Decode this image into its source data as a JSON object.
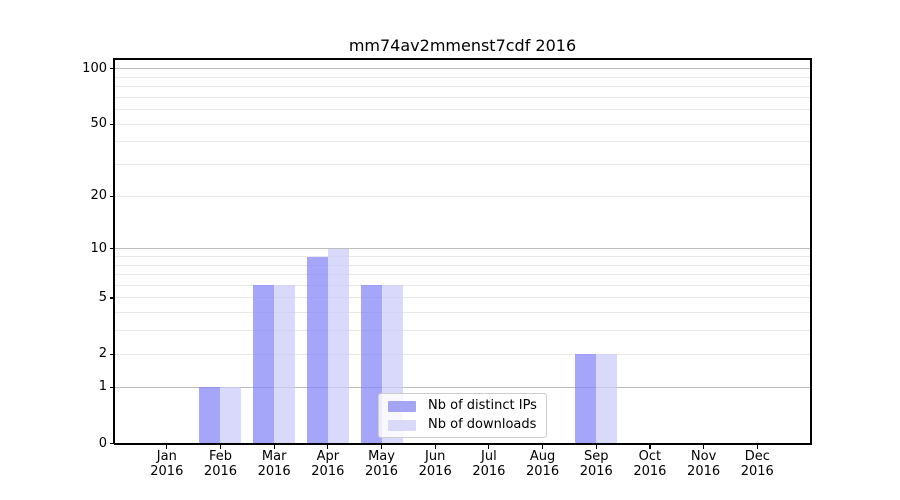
{
  "title": "mm74av2mmenst7cdf 2016",
  "colors": {
    "distinct_ips_bar": "#a5a5f6",
    "downloads_bar": "#d9d9fa",
    "distinct_ips_bar_rgba": "rgba(130,130,247,0.72)",
    "downloads_bar_rgba": "rgba(202,202,250,0.72)",
    "major_gridline": "#bdbdbd",
    "minor_gridline": "#e9e9e9",
    "axis": "#000000",
    "legend_border": "#cccccc",
    "legend_background": "rgba(255,255,255,0.8)"
  },
  "y_axis": {
    "scale": "log10(1+v)",
    "tick_labels": [
      "100",
      "50",
      "20",
      "10",
      "5",
      "2",
      "1",
      "0"
    ],
    "tick_values": [
      100,
      50,
      20,
      10,
      5,
      2,
      1,
      0
    ],
    "major_gridlines": [
      1,
      10,
      100
    ],
    "minor_gridlines": [
      2,
      3,
      4,
      5,
      6,
      7,
      8,
      9,
      20,
      30,
      40,
      50,
      60,
      70,
      80,
      90
    ]
  },
  "x_axis": {
    "ticks": [
      {
        "month": "Jan",
        "year": "2016"
      },
      {
        "month": "Feb",
        "year": "2016"
      },
      {
        "month": "Mar",
        "year": "2016"
      },
      {
        "month": "Apr",
        "year": "2016"
      },
      {
        "month": "May",
        "year": "2016"
      },
      {
        "month": "Jun",
        "year": "2016"
      },
      {
        "month": "Jul",
        "year": "2016"
      },
      {
        "month": "Aug",
        "year": "2016"
      },
      {
        "month": "Sep",
        "year": "2016"
      },
      {
        "month": "Oct",
        "year": "2016"
      },
      {
        "month": "Nov",
        "year": "2016"
      },
      {
        "month": "Dec",
        "year": "2016"
      }
    ]
  },
  "chart_data": {
    "type": "bar",
    "title": "mm74av2mmenst7cdf 2016",
    "categories": [
      "Jan 2016",
      "Feb 2016",
      "Mar 2016",
      "Apr 2016",
      "May 2016",
      "Jun 2016",
      "Jul 2016",
      "Aug 2016",
      "Sep 2016",
      "Oct 2016",
      "Nov 2016",
      "Dec 2016"
    ],
    "series": [
      {
        "name": "Nb of distinct IPs",
        "color": "#a5a5f6",
        "values": [
          0,
          1,
          6,
          9,
          6,
          0,
          0,
          0,
          2,
          0,
          0,
          0
        ]
      },
      {
        "name": "Nb of downloads",
        "color": "#d9d9fa",
        "values": [
          0,
          1,
          6,
          10,
          6,
          0,
          0,
          0,
          2,
          0,
          0,
          0
        ]
      }
    ],
    "xlabel": "",
    "ylabel": "",
    "y_ticks": [
      0,
      1,
      2,
      5,
      10,
      20,
      50,
      100
    ],
    "ylim": [
      0,
      117
    ],
    "grid": "horizontal only; light log-style minor gridlines, darker lines at 1/10/100",
    "legend_position": "inside, lower center"
  }
}
